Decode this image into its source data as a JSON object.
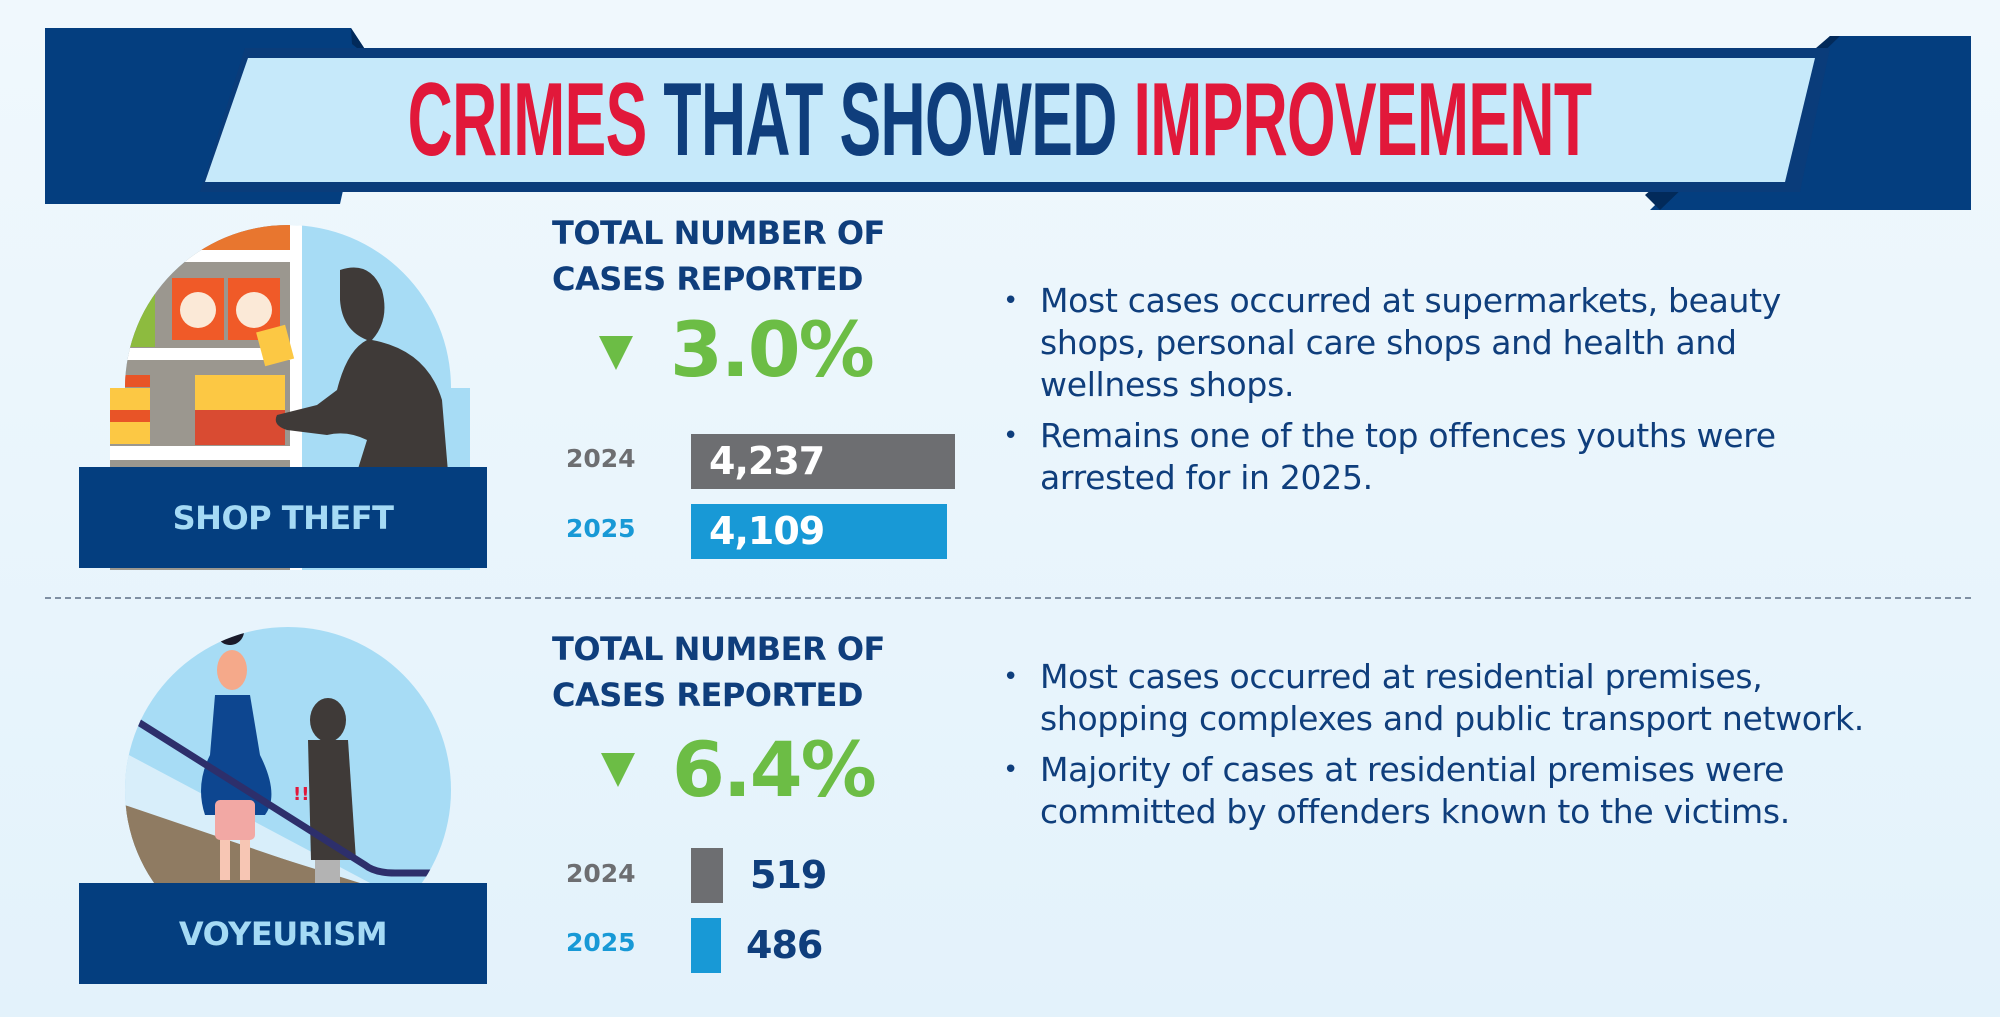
{
  "title": {
    "part1": "CRIMES",
    "part2": "THAT SHOWED",
    "part3": "IMPROVEMENT"
  },
  "colors": {
    "navy": "#0f3e7c",
    "red": "#e1183a",
    "green": "#6cbd45",
    "grey_2024": "#6d6e71",
    "blue_2025": "#1899d6",
    "banner_light": "#c6e9fa"
  },
  "sections": [
    {
      "label": "SHOP THEFT",
      "illustration": "shoplifter-at-shelf-icon",
      "heading_line1": "TOTAL NUMBER OF",
      "heading_line2": "CASES REPORTED",
      "change_icon": "down-triangle-icon",
      "change": "3.0%",
      "bullets": [
        {
          "lines": [
            "Most cases occurred at supermarkets, beauty",
            "shops, personal care shops and health and",
            "wellness shops."
          ]
        },
        {
          "lines": [
            "Remains one of the top offences youths were",
            "arrested for in 2025."
          ]
        }
      ]
    },
    {
      "label": "VOYEURISM",
      "illustration": "escalator-voyeur-icon",
      "heading_line1": "TOTAL NUMBER OF",
      "heading_line2": "CASES REPORTED",
      "change_icon": "down-triangle-icon",
      "change": "6.4%",
      "bullets": [
        {
          "lines": [
            "Most cases occurred at residential premises,",
            "shopping complexes and public transport network."
          ]
        },
        {
          "lines": [
            "Majority of cases at residential premises were",
            "committed by offenders known to the victims."
          ]
        }
      ]
    }
  ],
  "chart_data": [
    {
      "type": "bar",
      "orientation": "horizontal",
      "categories": [
        "2024",
        "2025"
      ],
      "values": [
        4237,
        4109
      ],
      "value_labels": [
        "4,237",
        "4,109"
      ]
    },
    {
      "type": "bar",
      "orientation": "horizontal",
      "categories": [
        "2024",
        "2025"
      ],
      "values": [
        519,
        486
      ],
      "value_labels": [
        "519",
        "486"
      ]
    }
  ]
}
